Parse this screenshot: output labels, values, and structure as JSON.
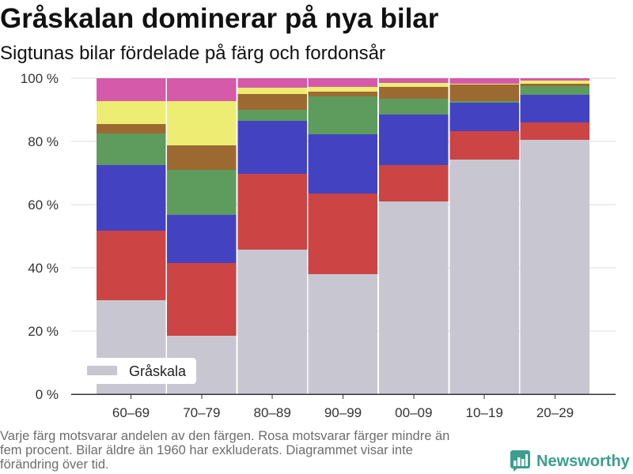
{
  "chart_data": {
    "type": "bar",
    "stacked": true,
    "title": "Gråskalan dominerar på nya bilar",
    "subtitle": "Sigtunas bilar fördelade på färg och fordonsår",
    "categories": [
      "60–69",
      "70–79",
      "80–89",
      "90–99",
      "00–09",
      "10–19",
      "20–29"
    ],
    "ylim": [
      0,
      100
    ],
    "yticks": [
      0,
      20,
      40,
      60,
      80,
      100
    ],
    "ytick_labels": [
      "0 %",
      "20 %",
      "40 %",
      "60 %",
      "80 %",
      "100 %"
    ],
    "grid": true,
    "legend": "bottom-left",
    "series": [
      {
        "name": "Gråskala",
        "color": "#c8c7d1",
        "values": [
          29.8,
          18.5,
          45.8,
          38.0,
          61.0,
          74.2,
          80.5
        ]
      },
      {
        "color": "#cc4444",
        "values": [
          22.0,
          23.0,
          24.0,
          25.5,
          11.5,
          9.0,
          5.5
        ]
      },
      {
        "color": "#4343c2",
        "values": [
          20.7,
          15.2,
          16.7,
          18.8,
          16.0,
          9.0,
          8.8
        ]
      },
      {
        "color": "#5d9c5d",
        "values": [
          10.0,
          14.3,
          3.5,
          12.0,
          5.0,
          0.5,
          2.7
        ]
      },
      {
        "color": "#9c6a31",
        "values": [
          3.0,
          7.8,
          5.0,
          1.5,
          3.8,
          5.3,
          0.8
        ]
      },
      {
        "color": "#eded73",
        "values": [
          7.2,
          14.0,
          2.0,
          1.5,
          1.2,
          0.2,
          1.0
        ]
      },
      {
        "color": "#d55aa9",
        "values": [
          7.3,
          7.2,
          3.0,
          2.7,
          1.5,
          1.8,
          0.7
        ]
      }
    ]
  },
  "footer": {
    "note": "Varje färg motsvarar andelen av den färgen. Rosa motsvarar färger mindre än fem procent. Bilar äldre än 1960 har exkluderats. Diagrammet visar inte förändring över tid.",
    "brand": {
      "name": "Newsworthy",
      "color": "#3b9e8e",
      "icon": "newsworthy-logo-icon"
    }
  }
}
